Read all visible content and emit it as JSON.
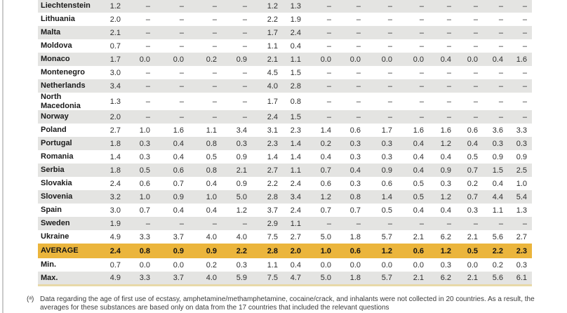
{
  "colors": {
    "stripe": "#e4e4e2",
    "highlight": "#ebb53c",
    "table_bottom_border": "#e8d9a8",
    "page_left_rule": "#cbcbcb"
  },
  "table": {
    "missing_value_symbol": "–",
    "rows": [
      {
        "label": "Liechtenstein",
        "style": "stripe",
        "values": [
          "1.2",
          "–",
          "–",
          "–",
          "–",
          "1.2",
          "1.3",
          "–",
          "–",
          "–",
          "–",
          "–",
          "–",
          "–",
          "–"
        ]
      },
      {
        "label": "Lithuania",
        "style": "plain",
        "values": [
          "2.0",
          "–",
          "–",
          "–",
          "–",
          "2.2",
          "1.9",
          "–",
          "–",
          "–",
          "–",
          "–",
          "–",
          "–",
          "–"
        ]
      },
      {
        "label": "Malta",
        "style": "stripe",
        "values": [
          "2.1",
          "–",
          "–",
          "–",
          "–",
          "1.7",
          "2.4",
          "–",
          "–",
          "–",
          "–",
          "–",
          "–",
          "–",
          "–"
        ]
      },
      {
        "label": "Moldova",
        "style": "plain",
        "values": [
          "0.7",
          "–",
          "–",
          "–",
          "–",
          "1.1",
          "0.4",
          "–",
          "–",
          "–",
          "–",
          "–",
          "–",
          "–",
          "–"
        ]
      },
      {
        "label": "Monaco",
        "style": "stripe",
        "values": [
          "1.7",
          "0.0",
          "0.0",
          "0.2",
          "0.9",
          "2.1",
          "1.1",
          "0.0",
          "0.0",
          "0.0",
          "0.0",
          "0.4",
          "0.0",
          "0.4",
          "1.6"
        ]
      },
      {
        "label": "Montenegro",
        "style": "plain",
        "values": [
          "3.0",
          "–",
          "–",
          "–",
          "–",
          "4.5",
          "1.5",
          "–",
          "–",
          "–",
          "–",
          "–",
          "–",
          "–",
          "–"
        ]
      },
      {
        "label": "Netherlands",
        "style": "stripe",
        "values": [
          "3.4",
          "–",
          "–",
          "–",
          "–",
          "4.0",
          "2.8",
          "–",
          "–",
          "–",
          "–",
          "–",
          "–",
          "–",
          "–"
        ]
      },
      {
        "label": "North Macedonia",
        "style": "plain",
        "values": [
          "1.3",
          "–",
          "–",
          "–",
          "–",
          "1.7",
          "0.8",
          "–",
          "–",
          "–",
          "–",
          "–",
          "–",
          "–",
          "–"
        ]
      },
      {
        "label": "Norway",
        "style": "stripe",
        "values": [
          "2.0",
          "–",
          "–",
          "–",
          "–",
          "2.4",
          "1.5",
          "–",
          "–",
          "–",
          "–",
          "–",
          "–",
          "–",
          "–"
        ]
      },
      {
        "label": "Poland",
        "style": "plain",
        "values": [
          "2.7",
          "1.0",
          "1.6",
          "1.1",
          "3.4",
          "3.1",
          "2.3",
          "1.4",
          "0.6",
          "1.7",
          "1.6",
          "1.6",
          "0.6",
          "3.6",
          "3.3"
        ]
      },
      {
        "label": "Portugal",
        "style": "stripe",
        "values": [
          "1.8",
          "0.3",
          "0.4",
          "0.8",
          "0.3",
          "2.3",
          "1.4",
          "0.2",
          "0.3",
          "0.3",
          "0.4",
          "1.2",
          "0.4",
          "0.3",
          "0.3"
        ]
      },
      {
        "label": "Romania",
        "style": "plain",
        "values": [
          "1.4",
          "0.3",
          "0.4",
          "0.5",
          "0.9",
          "1.4",
          "1.4",
          "0.4",
          "0.3",
          "0.3",
          "0.4",
          "0.4",
          "0.5",
          "0.9",
          "0.9"
        ]
      },
      {
        "label": "Serbia",
        "style": "stripe",
        "values": [
          "1.8",
          "0.5",
          "0.6",
          "0.8",
          "2.1",
          "2.7",
          "1.1",
          "0.7",
          "0.4",
          "0.9",
          "0.4",
          "0.9",
          "0.7",
          "1.5",
          "2.5"
        ]
      },
      {
        "label": "Slovakia",
        "style": "plain",
        "values": [
          "2.4",
          "0.6",
          "0.7",
          "0.4",
          "0.9",
          "2.2",
          "2.4",
          "0.6",
          "0.3",
          "0.6",
          "0.5",
          "0.3",
          "0.2",
          "0.4",
          "1.0"
        ]
      },
      {
        "label": "Slovenia",
        "style": "stripe",
        "values": [
          "3.2",
          "1.0",
          "0.9",
          "1.0",
          "5.0",
          "2.8",
          "3.4",
          "1.2",
          "0.8",
          "1.4",
          "0.5",
          "1.2",
          "0.7",
          "4.4",
          "5.4"
        ]
      },
      {
        "label": "Spain",
        "style": "plain",
        "values": [
          "3.0",
          "0.7",
          "0.4",
          "0.4",
          "1.2",
          "3.7",
          "2.4",
          "0.7",
          "0.7",
          "0.5",
          "0.4",
          "0.4",
          "0.3",
          "1.1",
          "1.3"
        ]
      },
      {
        "label": "Sweden",
        "style": "stripe",
        "values": [
          "1.9",
          "–",
          "–",
          "–",
          "–",
          "2.9",
          "1.1",
          "–",
          "–",
          "–",
          "–",
          "–",
          "–",
          "–",
          "–"
        ]
      },
      {
        "label": "Ukraine",
        "style": "plain",
        "values": [
          "4.9",
          "3.3",
          "3.7",
          "4.0",
          "4.0",
          "7.5",
          "2.7",
          "5.0",
          "1.8",
          "5.7",
          "2.1",
          "6.2",
          "2.1",
          "5.6",
          "2.7"
        ]
      },
      {
        "label": "AVERAGE",
        "style": "highlight",
        "values": [
          "2.4",
          "0.8",
          "0.9",
          "0.9",
          "2.2",
          "2.8",
          "2.0",
          "1.0",
          "0.6",
          "1.2",
          "0.6",
          "1.2",
          "0.5",
          "2.2",
          "2.3"
        ]
      },
      {
        "label": "Min.",
        "style": "plain",
        "values": [
          "0.7",
          "0.0",
          "0.0",
          "0.2",
          "0.3",
          "1.1",
          "0.4",
          "0.0",
          "0.0",
          "0.0",
          "0.0",
          "0.3",
          "0.0",
          "0.2",
          "0.3"
        ]
      },
      {
        "label": "Max.",
        "style": "stripe",
        "values": [
          "4.9",
          "3.3",
          "3.7",
          "4.0",
          "5.9",
          "7.5",
          "4.7",
          "5.0",
          "1.8",
          "5.7",
          "2.1",
          "6.2",
          "2.1",
          "5.6",
          "6.1"
        ]
      }
    ]
  },
  "footnote": {
    "marker": "(ᵃ)",
    "text": "Data regarding the age of first use of ecstasy, amphetamine/methamphetamine, cocaine/crack, and inhalants were not collected in 20 countries. As a result, the averages for these substances are based only on data from the 17 countries that included the relevant questions"
  }
}
